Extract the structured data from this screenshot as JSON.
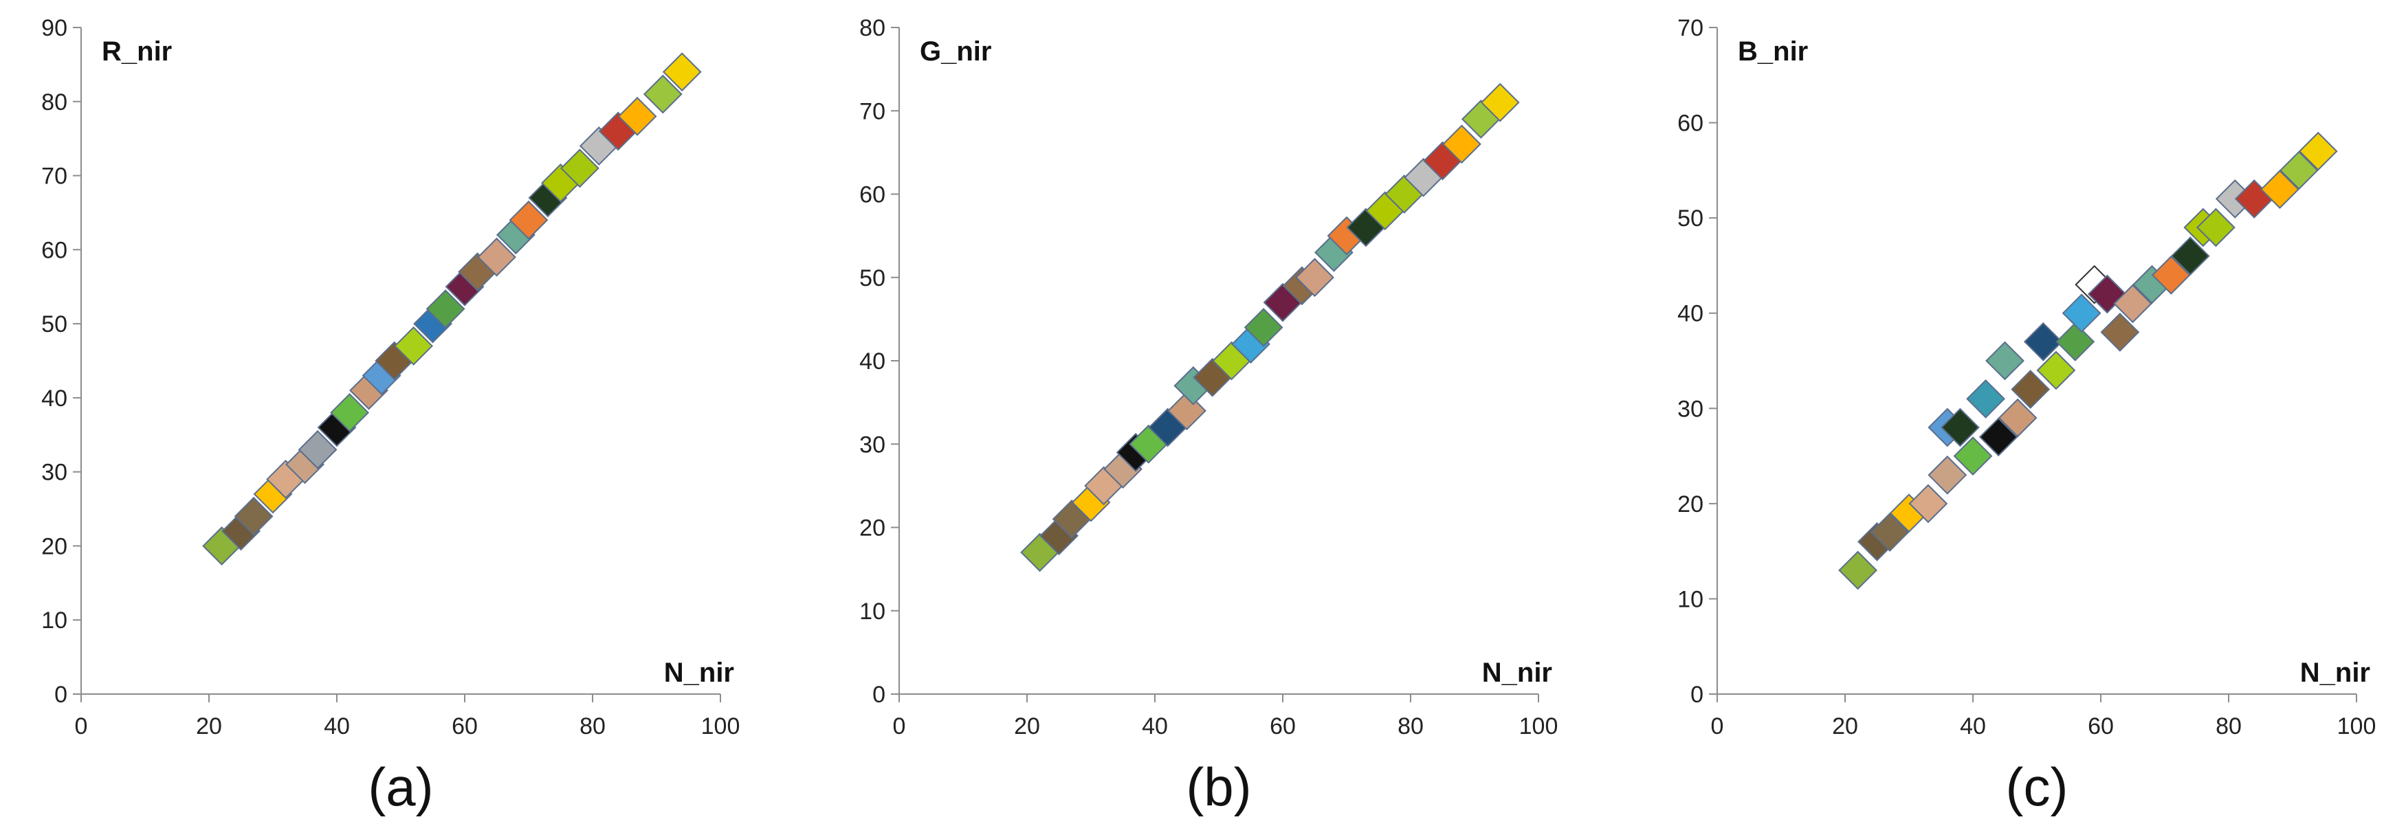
{
  "chart_data": [
    {
      "type": "scatter",
      "ylabel": "R_nir",
      "xlabel": "N_nir",
      "caption": "(a)",
      "xlim": [
        0,
        100
      ],
      "ylim": [
        0,
        90
      ],
      "xticks": [
        "0",
        "20",
        "40",
        "60",
        "80",
        "100"
      ],
      "yticks": [
        "0",
        "10",
        "20",
        "30",
        "40",
        "50",
        "60",
        "70",
        "80",
        "90"
      ],
      "grid": false,
      "marker": "diamond",
      "points": [
        {
          "x": 22,
          "y": 20,
          "color": "#8DB33A"
        },
        {
          "x": 25,
          "y": 22,
          "color": "#6F5A3C"
        },
        {
          "x": 27,
          "y": 24,
          "color": "#7F6A4A"
        },
        {
          "x": 30,
          "y": 27,
          "color": "#FFC000"
        },
        {
          "x": 32,
          "y": 29,
          "color": "#D9A886"
        },
        {
          "x": 35,
          "y": 31,
          "color": "#C9A286"
        },
        {
          "x": 37,
          "y": 33,
          "color": "#9AA0A8"
        },
        {
          "x": 40,
          "y": 36,
          "color": "#111111"
        },
        {
          "x": 42,
          "y": 38,
          "color": "#66BB44"
        },
        {
          "x": 45,
          "y": 41,
          "color": "#CC9977"
        },
        {
          "x": 47,
          "y": 43,
          "color": "#5B9BD5"
        },
        {
          "x": 49,
          "y": 45,
          "color": "#7A5C36"
        },
        {
          "x": 52,
          "y": 47,
          "color": "#A9D018"
        },
        {
          "x": 55,
          "y": 50,
          "color": "#2E75B6"
        },
        {
          "x": 57,
          "y": 52,
          "color": "#55A046"
        },
        {
          "x": 60,
          "y": 55,
          "color": "#6E1F43"
        },
        {
          "x": 62,
          "y": 57,
          "color": "#8C6B46"
        },
        {
          "x": 65,
          "y": 59,
          "color": "#D09E80"
        },
        {
          "x": 68,
          "y": 62,
          "color": "#6BAA95"
        },
        {
          "x": 70,
          "y": 64,
          "color": "#ED7D31"
        },
        {
          "x": 73,
          "y": 67,
          "color": "#1F3A1F"
        },
        {
          "x": 75,
          "y": 69,
          "color": "#B0C800"
        },
        {
          "x": 78,
          "y": 71,
          "color": "#A5C70E"
        },
        {
          "x": 81,
          "y": 74,
          "color": "#BFBFBF"
        },
        {
          "x": 84,
          "y": 76,
          "color": "#C0392B"
        },
        {
          "x": 87,
          "y": 78,
          "color": "#FFB000"
        },
        {
          "x": 91,
          "y": 81,
          "color": "#9BC53D"
        },
        {
          "x": 94,
          "y": 84,
          "color": "#F5D000"
        }
      ]
    },
    {
      "type": "scatter",
      "ylabel": "G_nir",
      "xlabel": "N_nir",
      "caption": "(b)",
      "xlim": [
        0,
        100
      ],
      "ylim": [
        0,
        80
      ],
      "xticks": [
        "0",
        "20",
        "40",
        "60",
        "80",
        "100"
      ],
      "yticks": [
        "0",
        "10",
        "20",
        "30",
        "40",
        "50",
        "60",
        "70",
        "80"
      ],
      "grid": false,
      "marker": "diamond",
      "points": [
        {
          "x": 22,
          "y": 17,
          "color": "#8DB33A"
        },
        {
          "x": 25,
          "y": 19,
          "color": "#6F5A3C"
        },
        {
          "x": 27,
          "y": 21,
          "color": "#7F6A4A"
        },
        {
          "x": 30,
          "y": 23,
          "color": "#FFC000"
        },
        {
          "x": 32,
          "y": 25,
          "color": "#D9A886"
        },
        {
          "x": 35,
          "y": 27,
          "color": "#C9A286"
        },
        {
          "x": 37,
          "y": 29,
          "color": "#111111"
        },
        {
          "x": 39,
          "y": 30,
          "color": "#66BB44"
        },
        {
          "x": 42,
          "y": 32,
          "color": "#1F4E79"
        },
        {
          "x": 45,
          "y": 34,
          "color": "#CC9977"
        },
        {
          "x": 46,
          "y": 37,
          "color": "#6BAA95"
        },
        {
          "x": 49,
          "y": 38,
          "color": "#7A5C36"
        },
        {
          "x": 52,
          "y": 40,
          "color": "#A9D018"
        },
        {
          "x": 55,
          "y": 42,
          "color": "#3DA5D9"
        },
        {
          "x": 57,
          "y": 44,
          "color": "#55A046"
        },
        {
          "x": 60,
          "y": 47,
          "color": "#6E1F43"
        },
        {
          "x": 63,
          "y": 49,
          "color": "#8C6B46"
        },
        {
          "x": 65,
          "y": 50,
          "color": "#D09E80"
        },
        {
          "x": 68,
          "y": 53,
          "color": "#6BAA95"
        },
        {
          "x": 70,
          "y": 55,
          "color": "#ED7D31"
        },
        {
          "x": 73,
          "y": 56,
          "color": "#1F3A1F"
        },
        {
          "x": 76,
          "y": 58,
          "color": "#B0C800"
        },
        {
          "x": 79,
          "y": 60,
          "color": "#A5C70E"
        },
        {
          "x": 82,
          "y": 62,
          "color": "#BFBFBF"
        },
        {
          "x": 85,
          "y": 64,
          "color": "#C0392B"
        },
        {
          "x": 88,
          "y": 66,
          "color": "#FFB000"
        },
        {
          "x": 91,
          "y": 69,
          "color": "#9BC53D"
        },
        {
          "x": 94,
          "y": 71,
          "color": "#F5D000"
        }
      ]
    },
    {
      "type": "scatter",
      "ylabel": "B_nir",
      "xlabel": "N_nir",
      "caption": "(c)",
      "xlim": [
        0,
        100
      ],
      "ylim": [
        0,
        70
      ],
      "xticks": [
        "0",
        "20",
        "40",
        "60",
        "80",
        "100"
      ],
      "yticks": [
        "0",
        "10",
        "20",
        "30",
        "40",
        "50",
        "60",
        "70"
      ],
      "grid": false,
      "marker": "diamond",
      "points": [
        {
          "x": 22,
          "y": 13,
          "color": "#8DB33A"
        },
        {
          "x": 25,
          "y": 16,
          "color": "#6F5A3C"
        },
        {
          "x": 27,
          "y": 17,
          "color": "#7F6A4A"
        },
        {
          "x": 30,
          "y": 19,
          "color": "#FFC000"
        },
        {
          "x": 33,
          "y": 20,
          "color": "#D9A886"
        },
        {
          "x": 36,
          "y": 23,
          "color": "#C9A286"
        },
        {
          "x": 36,
          "y": 28,
          "color": "#5B9BD5"
        },
        {
          "x": 38,
          "y": 28,
          "color": "#1F3A1F"
        },
        {
          "x": 40,
          "y": 25,
          "color": "#66BB44"
        },
        {
          "x": 42,
          "y": 31,
          "color": "#3A9AB0"
        },
        {
          "x": 44,
          "y": 27,
          "color": "#111111"
        },
        {
          "x": 45,
          "y": 35,
          "color": "#6BAA95"
        },
        {
          "x": 47,
          "y": 29,
          "color": "#CC9977"
        },
        {
          "x": 49,
          "y": 32,
          "color": "#7A5C36"
        },
        {
          "x": 51,
          "y": 37,
          "color": "#1F4E79"
        },
        {
          "x": 53,
          "y": 34,
          "color": "#A9D018"
        },
        {
          "x": 56,
          "y": 37,
          "color": "#55A046"
        },
        {
          "x": 57,
          "y": 40,
          "color": "#3DA5D9"
        },
        {
          "x": 59,
          "y": 43,
          "color": "#FFFFFF"
        },
        {
          "x": 61,
          "y": 42,
          "color": "#6E1F43"
        },
        {
          "x": 63,
          "y": 38,
          "color": "#8C6B46"
        },
        {
          "x": 65,
          "y": 41,
          "color": "#D09E80"
        },
        {
          "x": 68,
          "y": 43,
          "color": "#6BAA95"
        },
        {
          "x": 71,
          "y": 44,
          "color": "#ED7D31"
        },
        {
          "x": 74,
          "y": 46,
          "color": "#1F3A1F"
        },
        {
          "x": 76,
          "y": 49,
          "color": "#B0C800"
        },
        {
          "x": 78,
          "y": 49,
          "color": "#A5C70E"
        },
        {
          "x": 81,
          "y": 52,
          "color": "#BFBFBF"
        },
        {
          "x": 84,
          "y": 52,
          "color": "#C0392B"
        },
        {
          "x": 88,
          "y": 53,
          "color": "#FFB000"
        },
        {
          "x": 91,
          "y": 55,
          "color": "#9BC53D"
        },
        {
          "x": 94,
          "y": 57,
          "color": "#F5D000"
        }
      ]
    }
  ]
}
